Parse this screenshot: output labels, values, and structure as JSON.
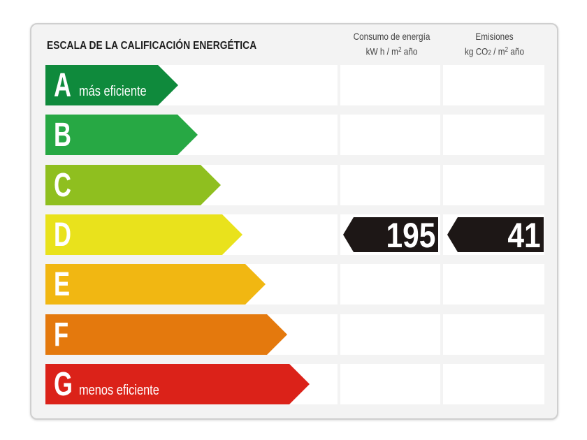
{
  "header": {
    "title": "ESCALA DE LA CALIFICACIÓN ENERGÉTICA",
    "consumo": {
      "line1": "Consumo de energía",
      "unit_kwh": "kW h / m",
      "unit_sup": "2",
      "unit_tail": " año"
    },
    "emisiones": {
      "line1": "Emisiones",
      "unit_kg": "kg CO",
      "unit_sub": "2",
      "unit_mid": " / m",
      "unit_sup": "2",
      "unit_tail": " año"
    }
  },
  "ratings": [
    {
      "letter": "A",
      "label": "más eficiente",
      "color": "#0f8a3c"
    },
    {
      "letter": "B",
      "label": "",
      "color": "#27a844"
    },
    {
      "letter": "C",
      "label": "",
      "color": "#8fbf1f"
    },
    {
      "letter": "D",
      "label": "",
      "color": "#e9e21c"
    },
    {
      "letter": "E",
      "label": "",
      "color": "#f1b712"
    },
    {
      "letter": "F",
      "label": "",
      "color": "#e4790d"
    },
    {
      "letter": "G",
      "label": "menos eficiente",
      "color": "#db2219"
    }
  ],
  "current": {
    "rating": "D",
    "consumo_value": "195",
    "emisiones_value": "41"
  }
}
